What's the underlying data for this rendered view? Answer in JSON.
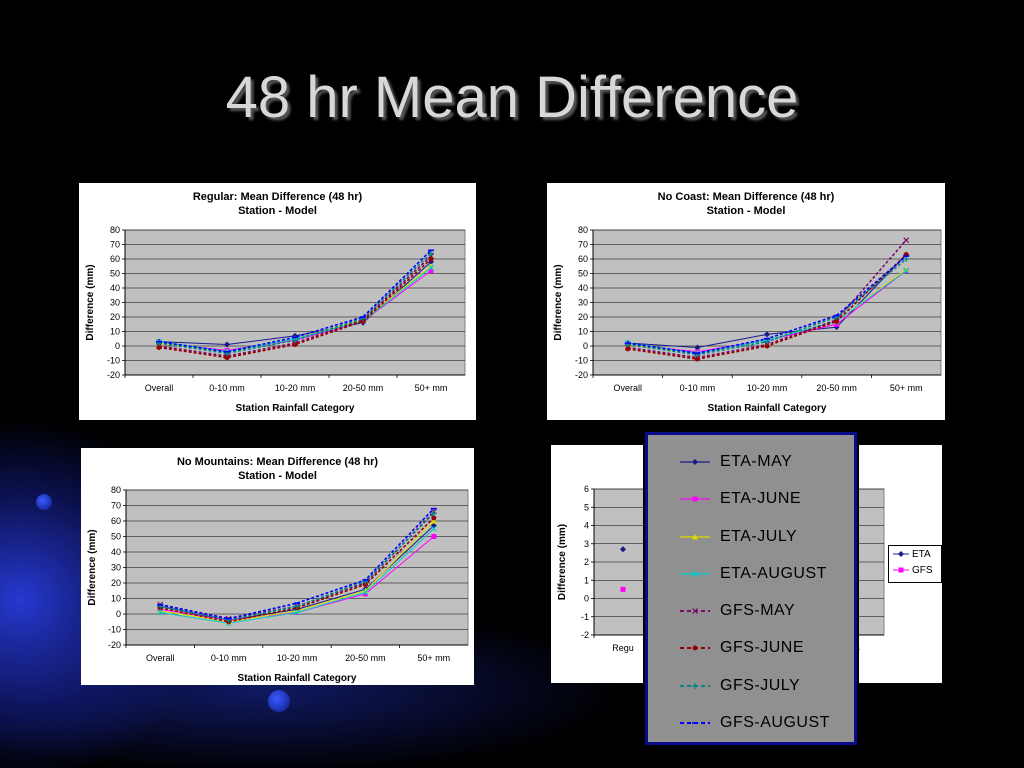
{
  "slide": {
    "title": "48 hr Mean Difference"
  },
  "legend_overlay": {
    "items": [
      {
        "label": "ETA-MAY",
        "color": "#1a1a8c",
        "dash": "solid",
        "marker": "diamond"
      },
      {
        "label": "ETA-JUNE",
        "color": "#ff00ff",
        "dash": "solid",
        "marker": "square"
      },
      {
        "label": "ETA-JULY",
        "color": "#dddd00",
        "dash": "solid",
        "marker": "triangle"
      },
      {
        "label": "ETA-AUGUST",
        "color": "#00cccc",
        "dash": "solid",
        "marker": "x"
      },
      {
        "label": "GFS-MAY",
        "color": "#7a0a6a",
        "dash": "dashed",
        "marker": "x"
      },
      {
        "label": "GFS-JUNE",
        "color": "#990000",
        "dash": "dashed",
        "marker": "circle"
      },
      {
        "label": "GFS-JULY",
        "color": "#008888",
        "dash": "dashed",
        "marker": "plus"
      },
      {
        "label": "GFS-AUGUST",
        "color": "#0000ff",
        "dash": "dashed",
        "marker": "dash"
      }
    ]
  },
  "small_legend": {
    "items": [
      {
        "label": "ETA",
        "color": "#1a1a8c"
      },
      {
        "label": "GFS",
        "color": "#ff00ff"
      }
    ]
  },
  "chart_data": [
    {
      "type": "line",
      "title": "Regular:  Mean Difference (48 hr)",
      "subtitle": "Station - Model",
      "xlabel": "Station Rainfall Category",
      "ylabel": "Difference (mm)",
      "ylim": [
        -20,
        80
      ],
      "yticks": [
        -20,
        -10,
        0,
        10,
        20,
        30,
        40,
        50,
        60,
        70,
        80
      ],
      "categories": [
        "Overall",
        "0-10 mm",
        "10-20 mm",
        "20-50 mm",
        "50+ mm"
      ],
      "grid": true,
      "series": [
        {
          "name": "ETA-MAY",
          "values": [
            3,
            1,
            7,
            16,
            58
          ]
        },
        {
          "name": "ETA-JUNE",
          "values": [
            2,
            -3,
            4,
            17,
            52
          ]
        },
        {
          "name": "ETA-JULY",
          "values": [
            2,
            -4,
            5,
            18,
            55
          ]
        },
        {
          "name": "ETA-AUGUST",
          "values": [
            3,
            -4,
            5,
            17,
            54
          ]
        },
        {
          "name": "GFS-MAY",
          "values": [
            0,
            -7,
            2,
            18,
            62
          ]
        },
        {
          "name": "GFS-JUNE",
          "values": [
            -1,
            -8,
            1,
            17,
            60
          ]
        },
        {
          "name": "GFS-JULY",
          "values": [
            2,
            -5,
            4,
            19,
            64
          ]
        },
        {
          "name": "GFS-AUGUST",
          "values": [
            3,
            -4,
            6,
            20,
            66
          ]
        }
      ]
    },
    {
      "type": "line",
      "title": "No Coast:  Mean Difference (48 hr)",
      "subtitle": "Station - Model",
      "xlabel": "Station Rainfall Category",
      "ylabel": "Difference (mm)",
      "ylim": [
        -20,
        80
      ],
      "yticks": [
        -20,
        -10,
        0,
        10,
        20,
        30,
        40,
        50,
        60,
        70,
        80
      ],
      "categories": [
        "Overall",
        "0-10 mm",
        "10-20 mm",
        "20-50 mm",
        "50+ mm"
      ],
      "grid": true,
      "series": [
        {
          "name": "ETA-MAY",
          "values": [
            2,
            -1,
            8,
            13,
            63
          ]
        },
        {
          "name": "ETA-JUNE",
          "values": [
            1,
            -4,
            4,
            15,
            52
          ]
        },
        {
          "name": "ETA-JULY",
          "values": [
            1,
            -5,
            4,
            17,
            53
          ]
        },
        {
          "name": "ETA-AUGUST",
          "values": [
            2,
            -5,
            4,
            17,
            52
          ]
        },
        {
          "name": "GFS-MAY",
          "values": [
            -1,
            -8,
            1,
            18,
            73
          ]
        },
        {
          "name": "GFS-JUNE",
          "values": [
            -2,
            -9,
            0,
            17,
            63
          ]
        },
        {
          "name": "GFS-JULY",
          "values": [
            1,
            -6,
            3,
            20,
            60
          ]
        },
        {
          "name": "GFS-AUGUST",
          "values": [
            2,
            -5,
            5,
            21,
            62
          ]
        }
      ]
    },
    {
      "type": "line",
      "title": "No Mountains:  Mean Difference (48 hr)",
      "subtitle": "Station - Model",
      "xlabel": "Station Rainfall Category",
      "ylabel": "Difference (mm)",
      "ylim": [
        -20,
        80
      ],
      "yticks": [
        -20,
        -10,
        0,
        10,
        20,
        30,
        40,
        50,
        60,
        70,
        80
      ],
      "categories": [
        "Overall",
        "0-10 mm",
        "10-20 mm",
        "20-50 mm",
        "50+ mm"
      ],
      "grid": true,
      "series": [
        {
          "name": "ETA-MAY",
          "values": [
            5,
            -4,
            3,
            16,
            57
          ]
        },
        {
          "name": "ETA-JUNE",
          "values": [
            3,
            -4,
            1,
            13,
            50
          ]
        },
        {
          "name": "ETA-JULY",
          "values": [
            2,
            -5,
            2,
            15,
            60
          ]
        },
        {
          "name": "ETA-AUGUST",
          "values": [
            1,
            -6,
            1,
            14,
            55
          ]
        },
        {
          "name": "GFS-MAY",
          "values": [
            6,
            -3,
            5,
            20,
            66
          ]
        },
        {
          "name": "GFS-JUNE",
          "values": [
            4,
            -5,
            4,
            19,
            62
          ]
        },
        {
          "name": "GFS-JULY",
          "values": [
            5,
            -4,
            5,
            21,
            65
          ]
        },
        {
          "name": "GFS-AUGUST",
          "values": [
            6,
            -3,
            7,
            22,
            68
          ]
        }
      ]
    },
    {
      "type": "line",
      "title": "",
      "subtitle": "",
      "xlabel": "",
      "ylabel": "Difference (mm)",
      "ylim": [
        -2,
        6
      ],
      "yticks": [
        -2,
        -1,
        0,
        1,
        2,
        3,
        4,
        5,
        6
      ],
      "categories": [
        "Regu",
        "",
        "",
        "",
        "ns"
      ],
      "grid": true,
      "series": [
        {
          "name": "ETA",
          "values": [
            2.7,
            null,
            null,
            null,
            null
          ]
        },
        {
          "name": "GFS",
          "values": [
            0.5,
            null,
            null,
            null,
            null
          ]
        }
      ]
    }
  ]
}
